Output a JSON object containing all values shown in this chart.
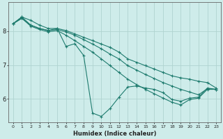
{
  "xlabel": "Humidex (Indice chaleur)",
  "background_color": "#ceecea",
  "grid_color": "#b0d8d4",
  "line_color": "#1e7b6e",
  "xlim": [
    -0.5,
    23.5
  ],
  "ylim": [
    5.3,
    8.85
  ],
  "yticks": [
    6,
    7,
    8
  ],
  "xticks": [
    0,
    1,
    2,
    3,
    4,
    5,
    6,
    7,
    8,
    9,
    10,
    11,
    12,
    13,
    14,
    15,
    16,
    17,
    18,
    19,
    20,
    21,
    22,
    23
  ],
  "series": [
    {
      "x": [
        0,
        1,
        2,
        3,
        4,
        5,
        6,
        7,
        8,
        9,
        10,
        11,
        12,
        13,
        14,
        15,
        16,
        17,
        18,
        19,
        20,
        21,
        22,
        23
      ],
      "y": [
        8.22,
        8.42,
        8.32,
        8.18,
        8.08,
        8.08,
        7.55,
        7.63,
        7.28,
        5.58,
        5.48,
        5.72,
        6.05,
        6.35,
        6.38,
        6.32,
        6.28,
        6.18,
        5.98,
        5.93,
        6.02,
        6.05,
        6.32,
        6.28
      ]
    },
    {
      "x": [
        0,
        1,
        2,
        3,
        4,
        5,
        6,
        7,
        8,
        9,
        10,
        11,
        12,
        13,
        14,
        15,
        16,
        17,
        18,
        19,
        20,
        21,
        22,
        23
      ],
      "y": [
        8.22,
        8.42,
        8.18,
        8.08,
        8.02,
        8.08,
        8.02,
        7.92,
        7.82,
        7.72,
        7.62,
        7.52,
        7.38,
        7.18,
        7.08,
        6.98,
        6.88,
        6.78,
        6.68,
        6.62,
        6.58,
        6.52,
        6.48,
        6.32
      ]
    },
    {
      "x": [
        0,
        1,
        2,
        3,
        4,
        5,
        6,
        7,
        8,
        9,
        10,
        11,
        12,
        13,
        14,
        15,
        16,
        17,
        18,
        19,
        20,
        21,
        22,
        23
      ],
      "y": [
        8.22,
        8.38,
        8.18,
        8.08,
        8.02,
        8.05,
        7.98,
        7.88,
        7.75,
        7.62,
        7.48,
        7.32,
        7.18,
        6.98,
        6.85,
        6.72,
        6.6,
        6.48,
        6.38,
        6.28,
        6.2,
        6.12,
        6.3,
        6.28
      ]
    },
    {
      "x": [
        0,
        1,
        2,
        3,
        4,
        5,
        6,
        7,
        8,
        9,
        10,
        11,
        12,
        13,
        14,
        15,
        16,
        17,
        18,
        19,
        20,
        21,
        22,
        23
      ],
      "y": [
        8.22,
        8.38,
        8.15,
        8.05,
        7.98,
        8.02,
        7.88,
        7.72,
        7.55,
        7.38,
        7.18,
        6.98,
        6.78,
        6.58,
        6.42,
        6.28,
        6.15,
        6.02,
        5.9,
        5.82,
        5.98,
        6.02,
        6.28,
        6.28
      ]
    }
  ]
}
